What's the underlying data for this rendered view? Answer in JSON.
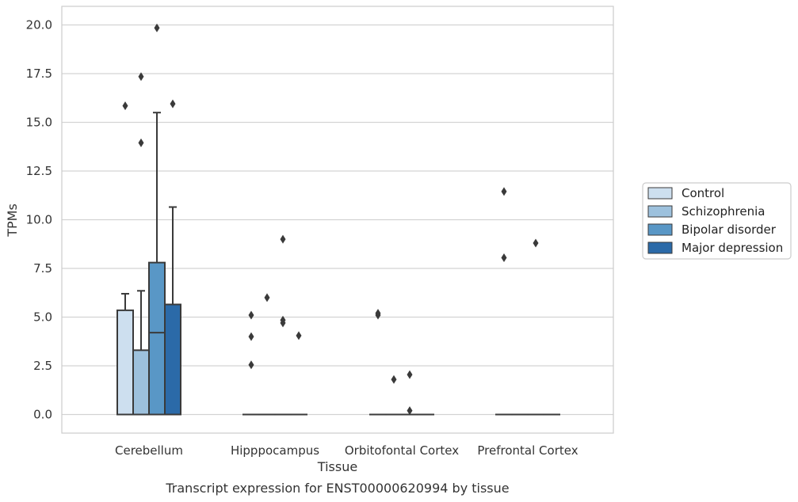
{
  "chart_data": {
    "type": "box",
    "xlabel": "Tissue",
    "ylabel": "TPMs",
    "caption": "Transcript expression for ENST00000620994 by tissue",
    "ylim": [
      -1.0,
      20.9
    ],
    "yticks": [
      "0.0",
      "2.5",
      "5.0",
      "7.5",
      "10.0",
      "12.5",
      "15.0",
      "17.5",
      "20.0"
    ],
    "ytick_values": [
      0,
      2.5,
      5,
      7.5,
      10,
      12.5,
      15,
      17.5,
      20
    ],
    "categories": [
      "Cerebellum",
      "Hipppocampus",
      "Orbitofontal Cortex",
      "Prefrontal Cortex"
    ],
    "grid": "horizontal",
    "legend_position": "right",
    "series": [
      {
        "name": "Control",
        "color": "#cddfef",
        "boxes": [
          {
            "q1": 0.0,
            "median": 0.0,
            "q3": 5.35,
            "whislo": 0.0,
            "whishi": 6.2,
            "fliers": [
              15.85
            ]
          },
          {
            "q1": 0.0,
            "median": 0.0,
            "q3": 0.0,
            "whislo": 0.0,
            "whishi": 0.0,
            "fliers": [
              2.55,
              4.0,
              5.1
            ]
          },
          {
            "q1": 0.0,
            "median": 0.0,
            "q3": 0.0,
            "whislo": 0.0,
            "whishi": 0.0,
            "fliers": [
              5.1,
              5.2
            ]
          },
          {
            "q1": 0.0,
            "median": 0.0,
            "q3": 0.0,
            "whislo": 0.0,
            "whishi": 0.0,
            "fliers": [
              8.05,
              11.45
            ]
          }
        ]
      },
      {
        "name": "Schizophrenia",
        "color": "#9dc1dd",
        "boxes": [
          {
            "q1": 0.0,
            "median": 0.0,
            "q3": 3.3,
            "whislo": 0.0,
            "whishi": 6.35,
            "fliers": [
              13.95,
              17.35
            ]
          },
          {
            "q1": 0.0,
            "median": 0.0,
            "q3": 0.0,
            "whislo": 0.0,
            "whishi": 0.0,
            "fliers": [
              6.0
            ]
          },
          {
            "q1": 0.0,
            "median": 0.0,
            "q3": 0.0,
            "whislo": 0.0,
            "whishi": 0.0,
            "fliers": [
              1.8
            ]
          },
          {
            "q1": 0.0,
            "median": 0.0,
            "q3": 0.0,
            "whislo": 0.0,
            "whishi": 0.0,
            "fliers": []
          }
        ]
      },
      {
        "name": "Bipolar disorder",
        "color": "#5997c6",
        "boxes": [
          {
            "q1": 0.0,
            "median": 4.2,
            "q3": 7.8,
            "whislo": 0.0,
            "whishi": 15.5,
            "fliers": [
              19.85
            ]
          },
          {
            "q1": 0.0,
            "median": 0.0,
            "q3": 0.0,
            "whislo": 0.0,
            "whishi": 0.0,
            "fliers": [
              4.7,
              4.85,
              9.0
            ]
          },
          {
            "q1": 0.0,
            "median": 0.0,
            "q3": 0.0,
            "whislo": 0.0,
            "whishi": 0.0,
            "fliers": [
              0.2,
              2.05
            ]
          },
          {
            "q1": 0.0,
            "median": 0.0,
            "q3": 0.0,
            "whislo": 0.0,
            "whishi": 0.0,
            "fliers": [
              8.8
            ]
          }
        ]
      },
      {
        "name": "Major depression",
        "color": "#2b6aa8",
        "boxes": [
          {
            "q1": 0.0,
            "median": 0.0,
            "q3": 5.65,
            "whislo": 0.0,
            "whishi": 10.65,
            "fliers": [
              15.95
            ]
          },
          {
            "q1": 0.0,
            "median": 0.0,
            "q3": 0.0,
            "whislo": 0.0,
            "whishi": 0.0,
            "fliers": [
              4.05
            ]
          },
          {
            "q1": 0.0,
            "median": 0.0,
            "q3": 0.0,
            "whislo": 0.0,
            "whishi": 0.0,
            "fliers": []
          },
          {
            "q1": 0.0,
            "median": 0.0,
            "q3": 0.0,
            "whislo": 0.0,
            "whishi": 0.0,
            "fliers": []
          }
        ]
      }
    ]
  }
}
